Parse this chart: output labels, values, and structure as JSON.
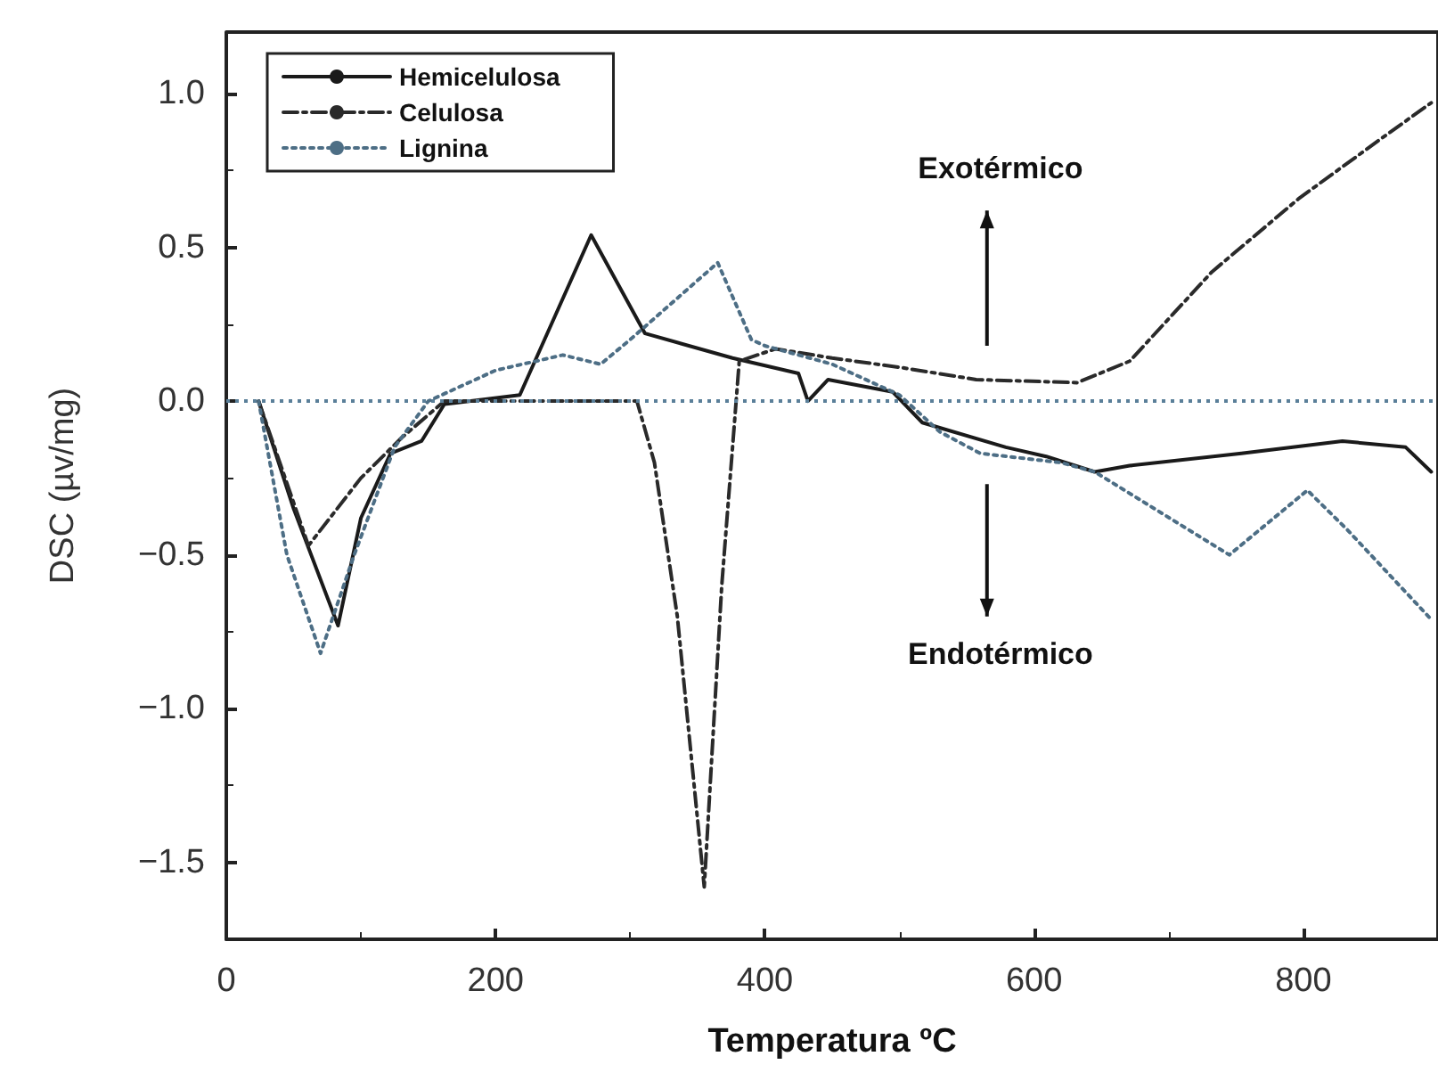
{
  "chart_data": {
    "type": "line",
    "xlabel": "Temperatura ºC",
    "ylabel": "DSC (µv/mg)",
    "xlim": [
      0,
      900
    ],
    "xticks": [
      0,
      200,
      400,
      600,
      800
    ],
    "ylim": [
      -1.75,
      1.2
    ],
    "yticks": [
      {
        "value": -1.5,
        "label": "−1.5"
      },
      {
        "value": -1.0,
        "label": "−1.0"
      },
      {
        "value": -0.5,
        "label": "−0.5"
      },
      {
        "value": 0.0,
        "label": "0.0"
      },
      {
        "value": 0.5,
        "label": "0.5"
      },
      {
        "value": 1.0,
        "label": "1.0"
      }
    ],
    "grid": false,
    "legend": "top left",
    "marker": "none",
    "ref_lines": [
      {
        "axis": "y",
        "value": 0,
        "label": null,
        "color": "#5a7f99",
        "line_style": "dotted"
      }
    ],
    "annotations": [
      "Exotérmico",
      "Endotérmico"
    ],
    "series": [
      {
        "name": "Hemicelulosa",
        "color": "#1a1a1a",
        "line_style": "solid",
        "x": [
          24,
          50,
          83,
          100,
          122,
          145,
          162,
          218,
          271,
          311,
          376,
          425,
          432,
          447,
          495,
          517,
          579,
          609,
          645,
          671,
          754,
          829,
          876,
          895
        ],
        "values": [
          0,
          -0.35,
          -0.73,
          -0.38,
          -0.17,
          -0.13,
          -0.01,
          0.02,
          0.54,
          0.22,
          0.14,
          0.09,
          0.0,
          0.07,
          0.03,
          -0.07,
          -0.15,
          -0.18,
          -0.23,
          -0.21,
          -0.17,
          -0.13,
          -0.15,
          -0.23
        ]
      },
      {
        "name": "Celulosa",
        "color": "#2a2a2a",
        "line_style": "dashed",
        "x": [
          24,
          61,
          100,
          130,
          162,
          250,
          305,
          318,
          335,
          355,
          368,
          381,
          408,
          450,
          500,
          557,
          632,
          671,
          732,
          797,
          863,
          895
        ],
        "values": [
          0,
          -0.47,
          -0.25,
          -0.12,
          0,
          0,
          0,
          -0.2,
          -0.7,
          -1.58,
          -0.6,
          0.13,
          0.17,
          0.14,
          0.11,
          0.07,
          0.06,
          0.13,
          0.42,
          0.66,
          0.87,
          0.97
        ]
      },
      {
        "name": "Lignina",
        "color": "#4d6e85",
        "line_style": "dotted",
        "x": [
          24,
          45,
          70,
          95,
          125,
          150,
          200,
          250,
          278,
          300,
          365,
          390,
          400,
          450,
          500,
          530,
          560,
          620,
          645,
          745,
          803,
          833,
          895
        ],
        "values": [
          0,
          -0.5,
          -0.82,
          -0.5,
          -0.15,
          0,
          0.1,
          0.15,
          0.12,
          0.2,
          0.45,
          0.2,
          0.18,
          0.12,
          0.02,
          -0.1,
          -0.17,
          -0.2,
          -0.23,
          -0.5,
          -0.29,
          -0.42,
          -0.71
        ]
      }
    ]
  }
}
